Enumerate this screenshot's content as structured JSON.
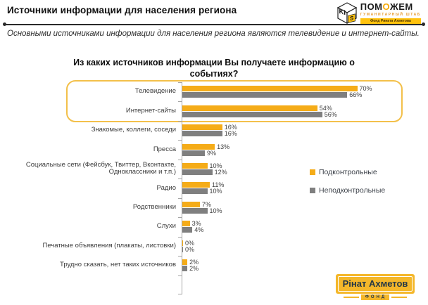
{
  "header": {
    "title": "Источники информации для населения региона",
    "logo": {
      "cube_letters": "KI",
      "cube_letter_side": "S",
      "name_pre": "ПОМ",
      "name_o": "О",
      "name_post": "ЖЕМ",
      "subtitle": "ГУМАНИТАРНЫЙ ШТАБ",
      "strip": "Фонд Рината Ахметова"
    }
  },
  "summary": "Основными источниками информации для населения региона являются телевидение и интернет-сайты.",
  "chart_data": {
    "type": "bar",
    "orientation": "horizontal",
    "title": "Из каких источников информации Вы получаете информацию о событиях?",
    "categories": [
      "Телевидение",
      "Интернет-сайты",
      "Знакомые, коллеги, соседи",
      "Пресса",
      "Социальные сети (Фейсбук, Твиттер, Вконтакте, Одноклассники и т.п.)",
      "Радио",
      "Родственники",
      "Слухи",
      "Печатные объявления (плакаты, листовки)",
      "Трудно сказать, нет таких источников"
    ],
    "series": [
      {
        "name": "Подконтрольные",
        "color": "#f5ac18",
        "values": [
          70,
          54,
          16,
          13,
          10,
          11,
          7,
          3,
          0,
          2
        ]
      },
      {
        "name": "Неподконтрольные",
        "color": "#7f7f7f",
        "values": [
          66,
          56,
          16,
          9,
          12,
          10,
          10,
          4,
          0,
          2
        ]
      }
    ],
    "value_suffix": "%",
    "xlim": [
      0,
      84
    ],
    "grid": false,
    "legend_position": "right",
    "highlighted_categories": [
      "Телевидение",
      "Интернет-сайты"
    ],
    "highlight_border_color": "#f3c04a"
  },
  "footer_logo": {
    "name": "Рінат Ахметов",
    "sub": "ФОНД"
  },
  "colors": {
    "series1": "#f5ac18",
    "series2": "#7f7f7f",
    "highlight_border": "#f3c04a",
    "brand_strip": "#ffc20e",
    "fund_yellow": "#f4b72a"
  }
}
